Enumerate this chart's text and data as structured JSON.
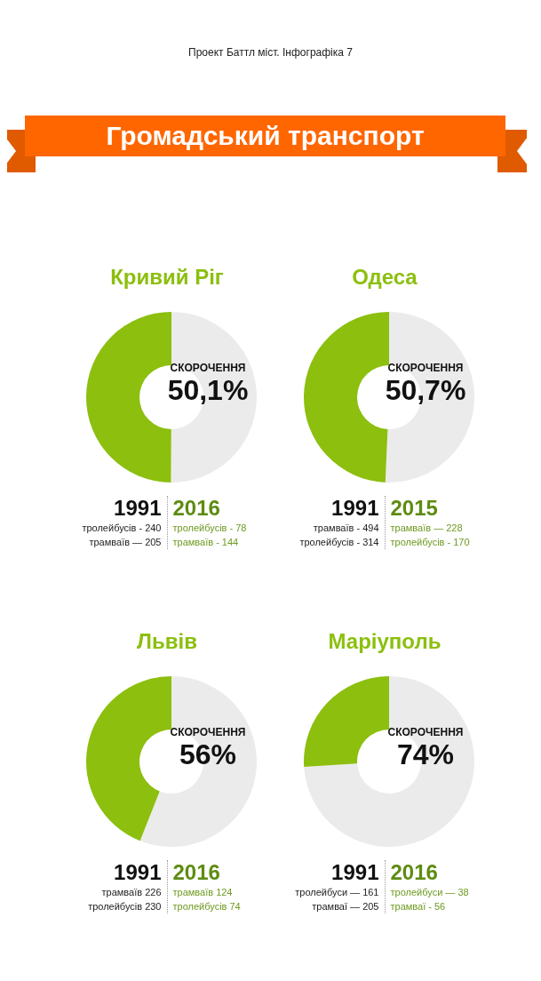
{
  "chart_data": [
    {
      "type": "other",
      "title": "Громадський транспорт",
      "annotations": [
        "Проект Баттл міст. Інфографіка 7"
      ]
    },
    {
      "type": "donut",
      "title": "Кривий Ріг",
      "categories": [
        "СКОРОЧЕННЯ",
        null
      ],
      "values": [
        50.1,
        49.9
      ],
      "value_labels": [
        "50,1%",
        null
      ],
      "colors": [
        "#ebebeb",
        "#8cbf0e"
      ],
      "legend": false,
      "annotations": [
        "1991",
        "тролейбусів - 240",
        "трамваїв — 205",
        "2016",
        "тролейбусів - 78",
        "трамваїв - 144"
      ]
    },
    {
      "type": "donut",
      "title": "Одеса",
      "categories": [
        "СКОРОЧЕННЯ",
        null
      ],
      "values": [
        50.7,
        49.3
      ],
      "value_labels": [
        "50,7%",
        null
      ],
      "colors": [
        "#ebebeb",
        "#8cbf0e"
      ],
      "legend": false,
      "annotations": [
        "1991",
        "трамваїв - 494",
        "тролейбусів - 314",
        "2015",
        "трамваїв — 228",
        "тролейбусів - 170"
      ]
    },
    {
      "type": "donut",
      "title": "Львів",
      "categories": [
        "СКОРОЧЕННЯ",
        null
      ],
      "values": [
        56,
        44
      ],
      "value_labels": [
        "56%",
        null
      ],
      "colors": [
        "#ebebeb",
        "#8cbf0e"
      ],
      "legend": false,
      "annotations": [
        "1991",
        "трамваїв 226",
        "тролейбусів 230",
        "2016",
        "трамваїв 124",
        "тролейбусів 74"
      ]
    },
    {
      "type": "donut",
      "title": "Маріуполь",
      "categories": [
        "СКОРОЧЕННЯ",
        null
      ],
      "values": [
        74,
        26
      ],
      "value_labels": [
        "74%",
        null
      ],
      "colors": [
        "#ebebeb",
        "#8cbf0e"
      ],
      "legend": false,
      "annotations": [
        "1991",
        "тролейбуси — 161",
        "трамваї — 205",
        "2016",
        "тролейбуси — 38",
        "трамваї - 56"
      ]
    }
  ]
}
